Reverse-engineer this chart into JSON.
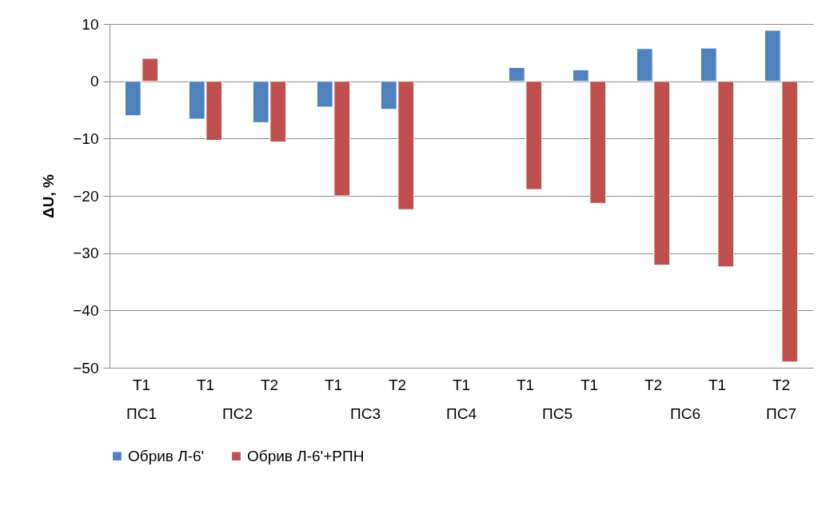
{
  "chart_data": {
    "type": "bar",
    "ylabel": "ΔU, %",
    "categories": [
      "T1",
      "T1",
      "T2",
      "T1",
      "T2",
      "T1",
      "T1",
      "T1",
      "T2",
      "T1",
      "T2"
    ],
    "series": [
      {
        "name": "Обрив Л-6'",
        "color": "#4f81bd",
        "values": [
          -6.0,
          -6.6,
          -7.2,
          -4.5,
          -4.9,
          null,
          2.4,
          2.0,
          5.7,
          5.8,
          8.9
        ]
      },
      {
        "name": "Обрив Л-6'+РПН",
        "color": "#c0504d",
        "values": [
          4.0,
          -10.3,
          -10.6,
          -20.0,
          -22.4,
          null,
          -18.9,
          -21.3,
          -32.1,
          -32.4,
          -49.0
        ]
      }
    ],
    "annotations": [
      "ПС1",
      "ПС2",
      "ПС3",
      "ПС4",
      "ПС5",
      "ПС6",
      "ПС7"
    ],
    "ylim": [
      -50,
      10
    ],
    "yticks": [
      -50,
      -40,
      -30,
      -20,
      -10,
      0,
      10
    ],
    "grid": "y",
    "legend": "bottom"
  }
}
